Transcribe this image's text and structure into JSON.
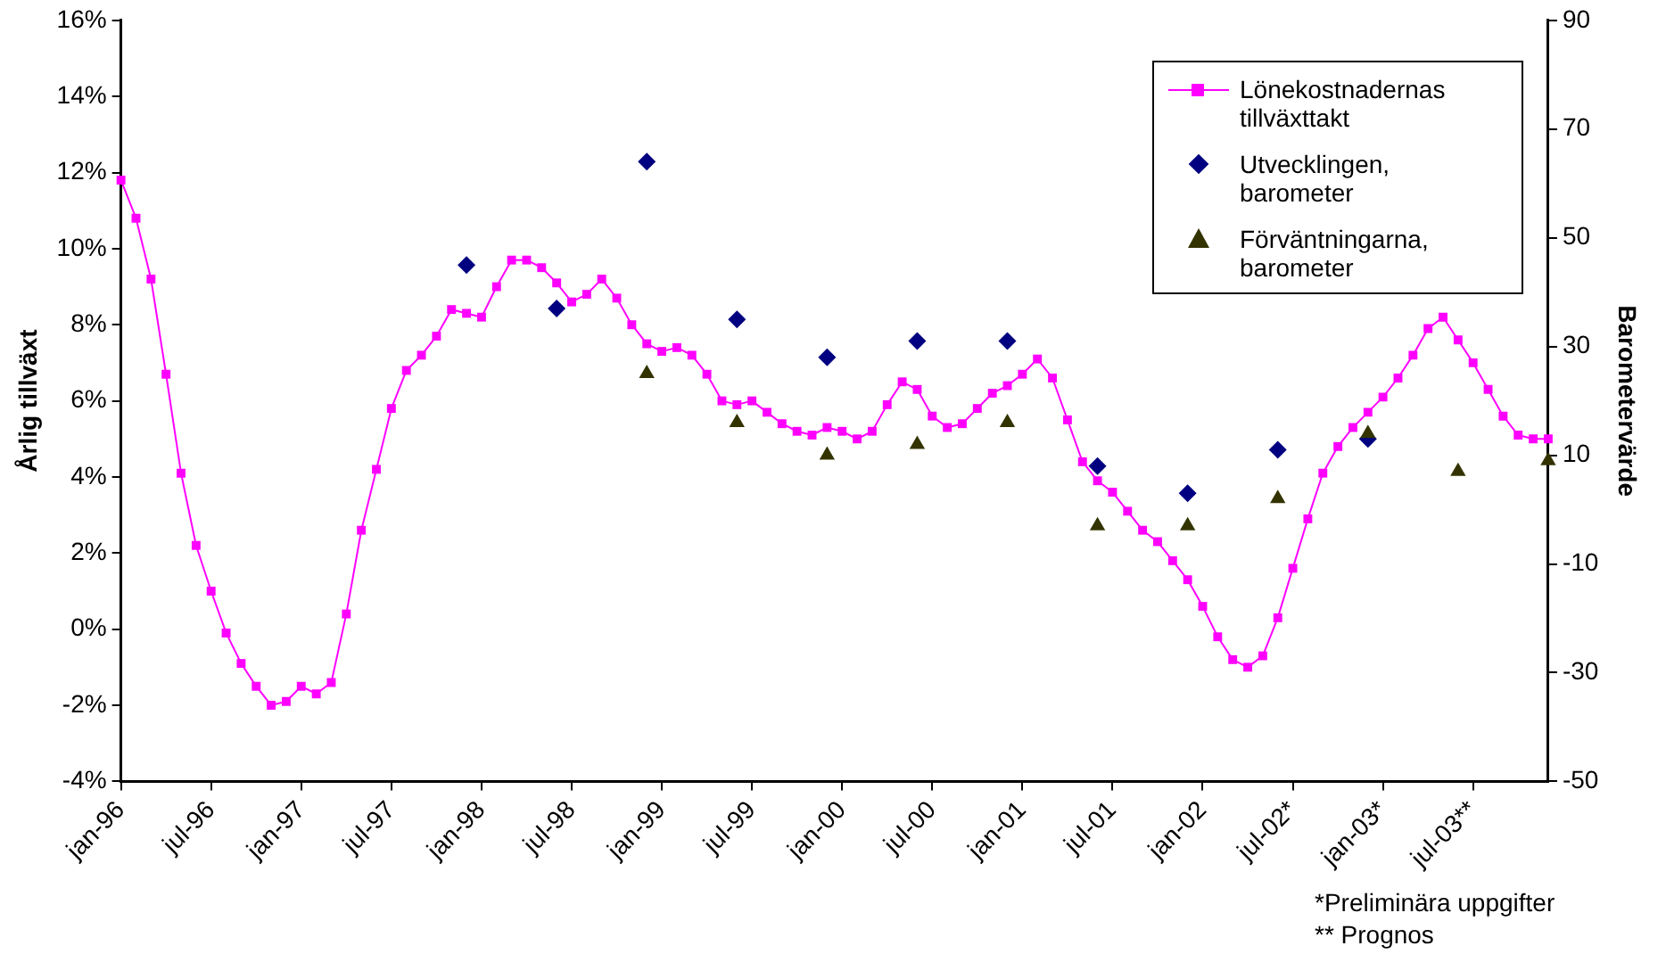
{
  "chart_data": {
    "type": "line",
    "categories": [
      "jan-96",
      null,
      null,
      null,
      null,
      null,
      "jul-96",
      null,
      null,
      null,
      null,
      null,
      "jan-97",
      null,
      null,
      null,
      null,
      null,
      "jul-97",
      null,
      null,
      null,
      null,
      null,
      "jan-98",
      null,
      null,
      null,
      null,
      null,
      "jul-98",
      null,
      null,
      null,
      null,
      null,
      "jan-99",
      null,
      null,
      null,
      null,
      null,
      "jul-99",
      null,
      null,
      null,
      null,
      null,
      "jan-00",
      null,
      null,
      null,
      null,
      null,
      "jul-00",
      null,
      null,
      null,
      null,
      null,
      "jan-01",
      null,
      null,
      null,
      null,
      null,
      "jul-01",
      null,
      null,
      null,
      null,
      null,
      "jan-02",
      null,
      null,
      null,
      null,
      null,
      "jul-02*",
      null,
      null,
      null,
      null,
      null,
      "jan-03*",
      null,
      null,
      null,
      null,
      null,
      "jul-03**",
      null,
      null,
      null,
      null,
      null
    ],
    "series": [
      {
        "name": "Lönekostnadernas tillväxttakt",
        "marker": "square",
        "color": "#ff00ff",
        "values": [
          11.8,
          10.8,
          9.2,
          6.7,
          4.1,
          2.2,
          1.0,
          -0.1,
          -0.9,
          -1.5,
          -2.0,
          -1.9,
          -1.5,
          -1.7,
          -1.4,
          0.4,
          2.6,
          4.2,
          5.8,
          6.8,
          7.2,
          7.7,
          8.4,
          8.3,
          8.2,
          9.0,
          9.7,
          9.7,
          9.5,
          9.1,
          8.6,
          8.8,
          9.2,
          8.7,
          8.0,
          7.5,
          7.3,
          7.4,
          7.2,
          6.7,
          6.0,
          5.9,
          6.0,
          5.7,
          5.4,
          5.2,
          5.1,
          5.3,
          5.2,
          5.0,
          5.2,
          5.9,
          6.5,
          6.3,
          5.6,
          5.3,
          5.4,
          5.8,
          6.2,
          6.4,
          6.7,
          7.1,
          6.6,
          5.5,
          4.4,
          3.9,
          3.6,
          3.1,
          2.6,
          2.3,
          1.8,
          1.3,
          0.6,
          -0.2,
          -0.8,
          -1.0,
          -0.7,
          0.3,
          1.6,
          2.9,
          4.1,
          4.8,
          5.3,
          5.7,
          6.1,
          6.6,
          7.2,
          7.9,
          8.2,
          7.6,
          7.0,
          6.3,
          5.6,
          5.1,
          5.0,
          5.0
        ]
      },
      {
        "name": "Utvecklingen, barometer",
        "type": "scatter",
        "axis": "y2",
        "marker": "diamond",
        "color": "#000080",
        "values": [
          null,
          null,
          null,
          null,
          null,
          null,
          null,
          null,
          null,
          null,
          null,
          null,
          null,
          null,
          null,
          null,
          null,
          null,
          null,
          null,
          null,
          null,
          null,
          45,
          null,
          null,
          null,
          null,
          null,
          37,
          null,
          null,
          null,
          null,
          null,
          64,
          null,
          null,
          null,
          null,
          null,
          35,
          null,
          null,
          null,
          null,
          null,
          28,
          null,
          null,
          null,
          null,
          null,
          31,
          null,
          null,
          null,
          null,
          null,
          31,
          null,
          null,
          null,
          null,
          null,
          8,
          null,
          null,
          null,
          null,
          null,
          3,
          null,
          null,
          null,
          null,
          null,
          11,
          null,
          null,
          null,
          null,
          null,
          13,
          null,
          null,
          null,
          null,
          null,
          null,
          null,
          null,
          null,
          null,
          null,
          null
        ]
      },
      {
        "name": "Förväntningarna, barometer",
        "type": "scatter",
        "axis": "y2",
        "marker": "triangle",
        "color": "#333300",
        "values": [
          null,
          null,
          null,
          null,
          null,
          null,
          null,
          null,
          null,
          null,
          null,
          null,
          null,
          null,
          null,
          null,
          null,
          null,
          null,
          null,
          null,
          null,
          null,
          null,
          null,
          null,
          null,
          null,
          null,
          null,
          null,
          null,
          null,
          null,
          null,
          25,
          null,
          null,
          null,
          null,
          null,
          16,
          null,
          null,
          null,
          null,
          null,
          10,
          null,
          null,
          null,
          null,
          null,
          12,
          null,
          null,
          null,
          null,
          null,
          16,
          null,
          null,
          null,
          null,
          null,
          -3,
          null,
          null,
          null,
          null,
          null,
          -3,
          null,
          null,
          null,
          null,
          null,
          2,
          null,
          null,
          null,
          null,
          null,
          14,
          null,
          null,
          null,
          null,
          null,
          7,
          null,
          null,
          null,
          null,
          null,
          9
        ]
      }
    ],
    "ylabel": "Årlig tillväxt",
    "y2label": "Barometervärde",
    "ylim": [
      -4,
      16
    ],
    "yticks": [
      {
        "value": -4,
        "label": "-4%"
      },
      {
        "value": -2,
        "label": "-2%"
      },
      {
        "value": 0,
        "label": "0%"
      },
      {
        "value": 2,
        "label": "2%"
      },
      {
        "value": 4,
        "label": "4%"
      },
      {
        "value": 6,
        "label": "6%"
      },
      {
        "value": 8,
        "label": "8%"
      },
      {
        "value": 10,
        "label": "10%"
      },
      {
        "value": 12,
        "label": "12%"
      },
      {
        "value": 14,
        "label": "14%"
      },
      {
        "value": 16,
        "label": "16%"
      }
    ],
    "y2lim": [
      -50,
      90
    ],
    "y2ticks": [
      -50,
      -30,
      -10,
      10,
      30,
      50,
      70,
      90
    ],
    "legend": "top right",
    "grid": false,
    "annotations": [
      "*Preliminära uppgifter",
      "** Prognos"
    ]
  }
}
